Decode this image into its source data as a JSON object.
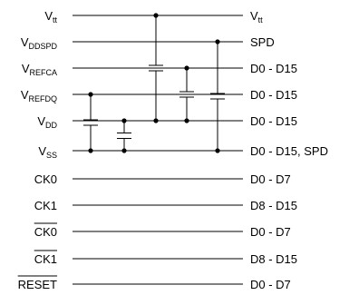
{
  "rows": [
    {
      "left_main": "V",
      "left_sub": "tt",
      "overline": false,
      "right_main": "V",
      "right_sub": "tt"
    },
    {
      "left_main": "V",
      "left_sub": "DDSPD",
      "overline": false,
      "right_main": "SPD",
      "right_sub": ""
    },
    {
      "left_main": "V",
      "left_sub": "REFCA",
      "overline": false,
      "right_main": "D0 - D15",
      "right_sub": ""
    },
    {
      "left_main": "V",
      "left_sub": "REFDQ",
      "overline": false,
      "right_main": "D0 - D15",
      "right_sub": ""
    },
    {
      "left_main": "V",
      "left_sub": "DD",
      "overline": false,
      "right_main": "D0 - D15",
      "right_sub": ""
    },
    {
      "left_main": "V",
      "left_sub": "SS",
      "overline": false,
      "right_main": "D0 - D15, SPD",
      "right_sub": ""
    },
    {
      "left_main": "CK0",
      "left_sub": "",
      "overline": false,
      "right_main": "D0 - D7",
      "right_sub": ""
    },
    {
      "left_main": "CK1",
      "left_sub": "",
      "overline": false,
      "right_main": "D8 - D15",
      "right_sub": ""
    },
    {
      "left_main": "CK0",
      "left_sub": "",
      "overline": true,
      "right_main": "D0 - D7",
      "right_sub": ""
    },
    {
      "left_main": "CK1",
      "left_sub": "",
      "overline": true,
      "right_main": "D8 - D15",
      "right_sub": ""
    },
    {
      "left_main": "RESET",
      "left_sub": "",
      "overline": true,
      "right_main": "D0 - D7",
      "right_sub": ""
    }
  ],
  "capacitors": [
    {
      "name": "vrefdq-vss-cap"
    },
    {
      "name": "vdd-vss-cap"
    },
    {
      "name": "vtt-vdd-cap"
    },
    {
      "name": "vrefca-vdd-cap"
    },
    {
      "name": "vddspd-vss-cap"
    }
  ]
}
